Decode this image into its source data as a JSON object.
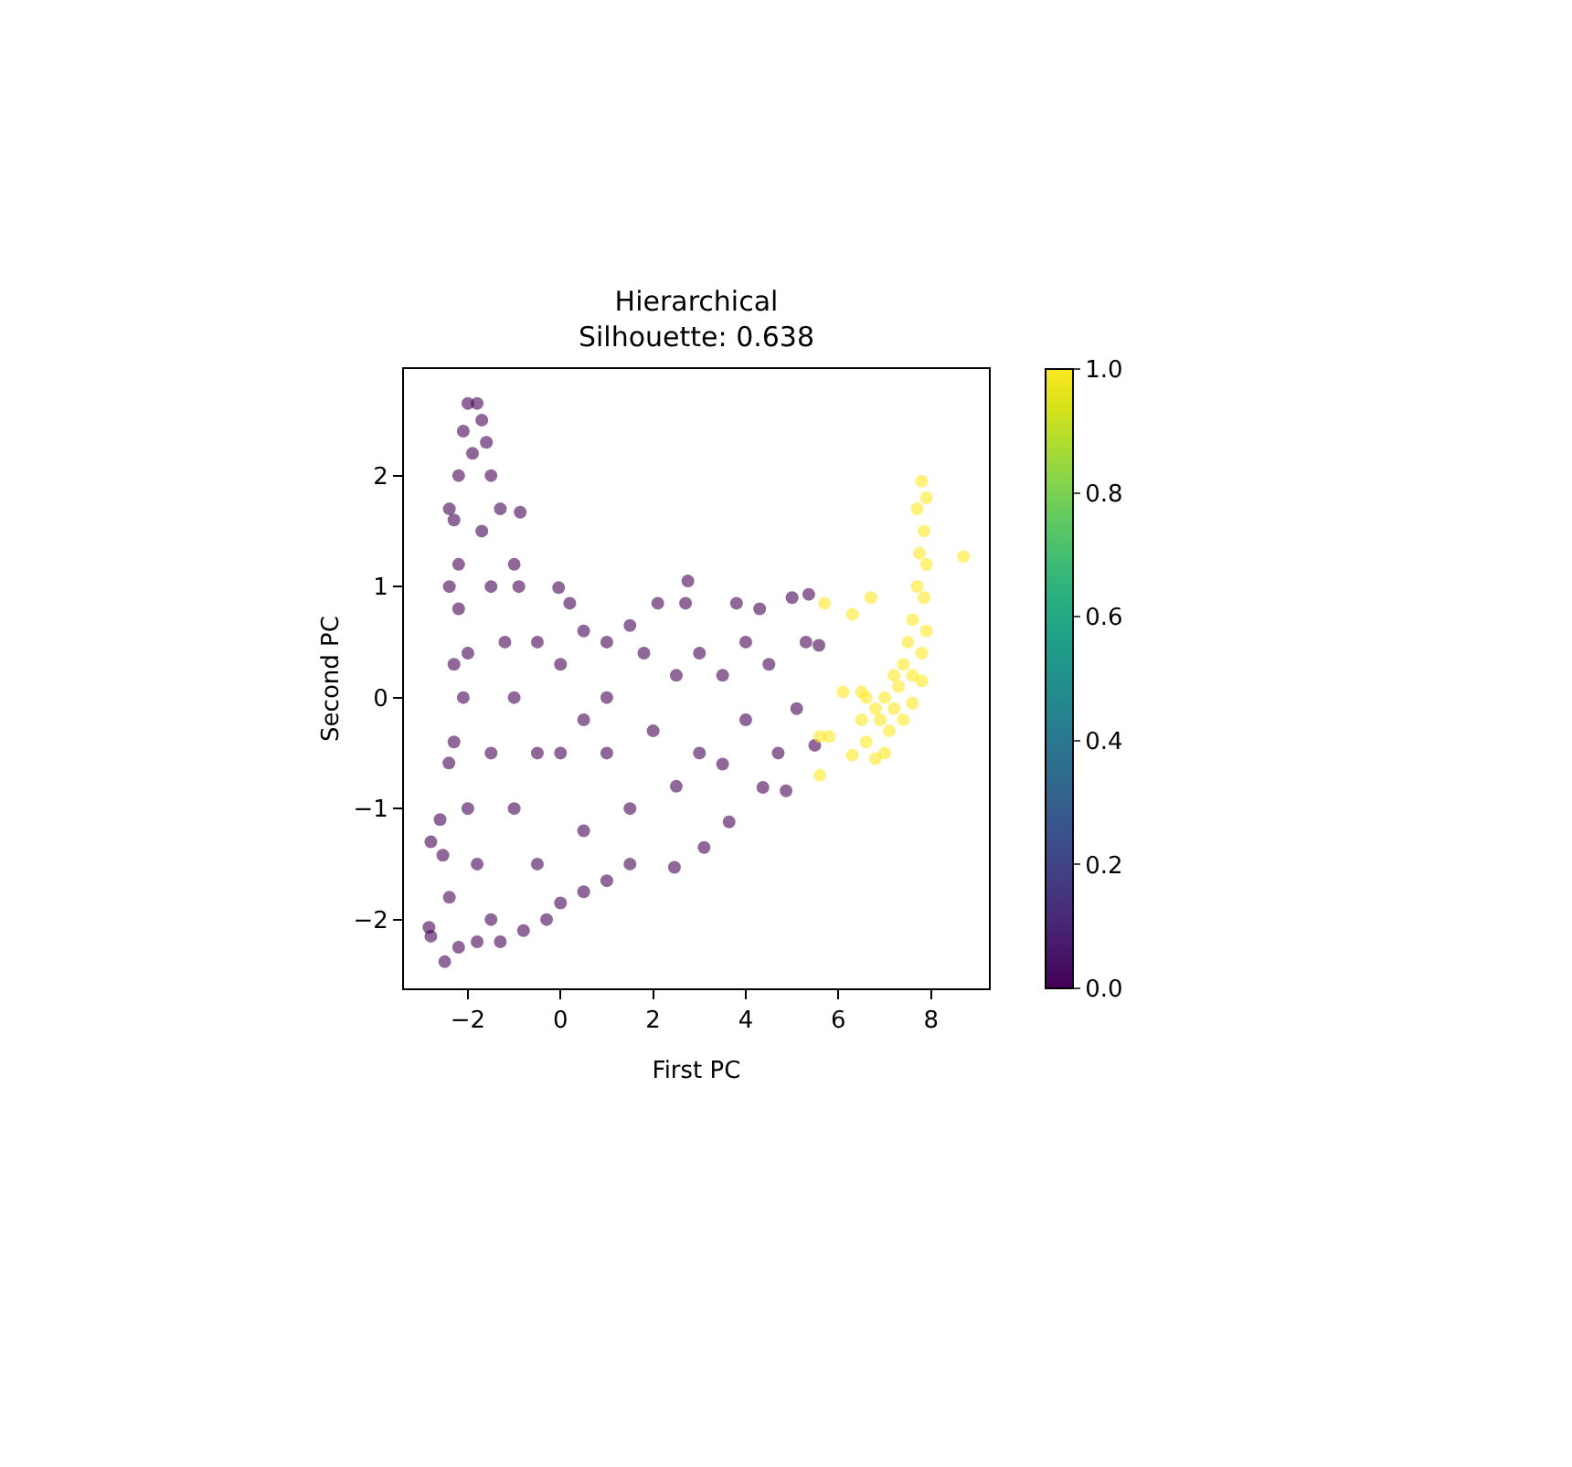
{
  "chart_data": {
    "type": "scatter",
    "title": "Hierarchical\nSilhouette: 0.638",
    "xlabel": "First PC",
    "ylabel": "Second PC",
    "xlim": [
      -3.38,
      9.25
    ],
    "ylim": [
      -2.62,
      2.96
    ],
    "xticks": [
      {
        "value": -2,
        "label": "−2"
      },
      0,
      2,
      4,
      6,
      8
    ],
    "yticks": [
      {
        "value": -2,
        "label": "−2"
      },
      {
        "value": -1,
        "label": "−1"
      },
      0,
      1,
      2
    ],
    "clim": [
      0,
      1
    ],
    "cticks": [
      {
        "value": 0,
        "label": "0.0"
      },
      {
        "value": 0.2,
        "label": "0.2"
      },
      {
        "value": 0.4,
        "label": "0.4"
      },
      {
        "value": 0.6,
        "label": "0.6"
      },
      {
        "value": 0.8,
        "label": "0.8"
      },
      {
        "value": 1,
        "label": "1.0"
      }
    ],
    "grid": false,
    "marker": "circle",
    "series": [
      {
        "x": [
          -2,
          -1.8,
          -2.1,
          -1.7,
          -1.9,
          -1.6,
          -2.2,
          -1.5,
          -2.3,
          -1.3,
          -0.87,
          -2.2,
          -1.0,
          -0.9,
          -2.2,
          -0.04,
          0.2,
          -2.3,
          -2.1,
          -2.3,
          -2.41,
          -2.6,
          -2.8,
          -2.54,
          -2.84,
          -2.8,
          -2.5,
          -2.2,
          -1.8,
          -1.3,
          -0.8,
          -0.3,
          0,
          0.5,
          1,
          1.5,
          2.46,
          3.1,
          3.64,
          4.37,
          4.87,
          5.49,
          5.1,
          5.58,
          5.3,
          5.36,
          5.0,
          4.3,
          3.8,
          2.75,
          2.1,
          2.7,
          1.5,
          1.0,
          0.5,
          3.0,
          4.0,
          4.5,
          4.0,
          3.0,
          2.0,
          1.5,
          2.5,
          3.5,
          4.7,
          1.0,
          0.0,
          -0.5,
          -1.0,
          -1.5,
          -1.0,
          -0.5,
          0.5,
          -1.5,
          -1.8,
          -1.5,
          0,
          1.0,
          -1.2,
          -1.7,
          -2.0,
          -0.5,
          0.5,
          2.5,
          3.5,
          1.8,
          -2.4,
          -2.0,
          -2.4,
          -2.4
        ],
        "values": [
          2.65,
          2.65,
          2.4,
          2.5,
          2.2,
          2.3,
          2.0,
          2.0,
          1.6,
          1.7,
          1.67,
          1.2,
          1.2,
          1.0,
          0.8,
          0.99,
          0.85,
          0.3,
          0,
          -0.4,
          -0.59,
          -1.1,
          -1.3,
          -1.42,
          -2.07,
          -2.15,
          -2.38,
          -2.25,
          -2.2,
          -2.2,
          -2.1,
          -2.0,
          -1.85,
          -1.75,
          -1.65,
          -1.5,
          -1.53,
          -1.35,
          -1.12,
          -0.81,
          -0.84,
          -0.43,
          -0.1,
          0.47,
          0.5,
          0.93,
          0.9,
          0.8,
          0.85,
          1.05,
          0.85,
          0.85,
          0.65,
          0.5,
          0.6,
          0.4,
          0.5,
          0.3,
          -0.2,
          -0.5,
          -0.3,
          -1.0,
          -0.8,
          -0.6,
          -0.5,
          0.0,
          0.3,
          0.5,
          0,
          -0.5,
          -1.0,
          -1.5,
          -1.2,
          1.0,
          -1.5,
          -2.0,
          -0.5,
          -0.5,
          0.5,
          1.5,
          -1.0,
          -0.5,
          -0.2,
          0.2,
          0.2,
          0.4,
          -1.8,
          0.4,
          1.0,
          1.7
        ],
        "cvalues": [
          0,
          0,
          0,
          0,
          0,
          0,
          0,
          0,
          0,
          0,
          0,
          0,
          0,
          0,
          0,
          0,
          0,
          0,
          0,
          0,
          0,
          0,
          0,
          0,
          0,
          0,
          0,
          0,
          0,
          0,
          0,
          0,
          0,
          0,
          0,
          0,
          0,
          0,
          0,
          0,
          0,
          0,
          0,
          0,
          0,
          0,
          0,
          0,
          0,
          0,
          0,
          0,
          0,
          0,
          0,
          0,
          0,
          0,
          0,
          0,
          0,
          0,
          0,
          0,
          0,
          0,
          0,
          0,
          0,
          0,
          0,
          0,
          0,
          0,
          0,
          0,
          0,
          0,
          0,
          0,
          0,
          0,
          0,
          0,
          0,
          0,
          0,
          0,
          0,
          0
        ]
      },
      {
        "x": [
          5.7,
          6.3,
          6.7,
          6.1,
          5.6,
          5.8,
          5.6,
          6.3,
          8.7,
          7.6,
          7.8,
          7.9,
          7.7,
          7.85,
          7.75,
          7.9,
          7.7,
          7.85,
          7.6,
          7.9,
          7.5,
          7.8,
          7.4,
          7.6,
          7.8,
          7.3,
          7.2,
          7.0,
          6.6,
          6.5,
          6.8,
          7.1,
          6.6,
          6.8,
          7.0,
          6.9,
          7.2,
          6.5,
          7.4
        ],
        "values": [
          0.85,
          0.75,
          0.9,
          0.05,
          -0.35,
          -0.35,
          -0.7,
          -0.52,
          1.27,
          -0.05,
          1.95,
          1.8,
          1.7,
          1.5,
          1.3,
          1.2,
          1.0,
          0.9,
          0.7,
          0.6,
          0.5,
          0.4,
          0.3,
          0.2,
          0.15,
          0.1,
          0.2,
          0.0,
          0.0,
          -0.2,
          -0.1,
          -0.3,
          -0.4,
          -0.55,
          -0.5,
          -0.2,
          -0.1,
          0.05,
          -0.2
        ],
        "cvalues": [
          1,
          1,
          1,
          1,
          1,
          1,
          1,
          1,
          1,
          1,
          1,
          1,
          1,
          1,
          1,
          1,
          1,
          1,
          1,
          1,
          1,
          1,
          1,
          1,
          1,
          1,
          1,
          1,
          1,
          1,
          1,
          1,
          1,
          1,
          1,
          1,
          1,
          1,
          1
        ]
      }
    ]
  }
}
